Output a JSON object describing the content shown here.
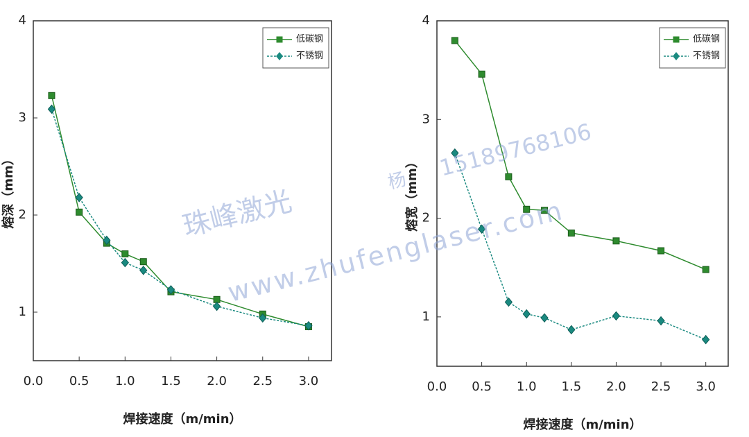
{
  "chart_data": [
    {
      "type": "line",
      "ylabel": "熔深（mm）",
      "xlabel": "焊接速度（m/min）",
      "x": [
        0.2,
        0.5,
        0.8,
        1.0,
        1.2,
        1.5,
        2.0,
        2.5,
        3.0
      ],
      "series": [
        {
          "name": "低碳钢",
          "color": "#2e8b2e",
          "values": [
            3.23,
            2.03,
            1.71,
            1.6,
            1.52,
            1.21,
            1.13,
            0.98,
            0.85
          ]
        },
        {
          "name": "不锈钢",
          "color": "#1a8a80",
          "values": [
            3.09,
            2.18,
            1.74,
            1.51,
            1.43,
            1.23,
            1.06,
            0.94,
            0.86
          ]
        }
      ],
      "xlim": [
        0,
        3.25
      ],
      "ylim": [
        0.5,
        4
      ],
      "xticks": [
        {
          "value": 0,
          "label": "0.0"
        },
        0.5,
        {
          "value": 1,
          "label": "1.0"
        },
        1.5,
        {
          "value": 2,
          "label": "2.0"
        },
        2.5,
        {
          "value": 3,
          "label": "3.0"
        }
      ],
      "yticks": [
        1,
        2,
        3,
        4
      ],
      "legend": "upper right"
    },
    {
      "type": "line",
      "ylabel": "熔宽（mm）",
      "xlabel": "焊接速度（m/min）",
      "x": [
        0.2,
        0.5,
        0.8,
        1.0,
        1.2,
        1.5,
        2.0,
        2.5,
        3.0
      ],
      "series": [
        {
          "name": "低碳钢",
          "color": "#2e8b2e",
          "values": [
            3.8,
            3.46,
            2.42,
            2.09,
            2.08,
            1.85,
            1.77,
            1.67,
            1.48
          ]
        },
        {
          "name": "不锈钢",
          "color": "#1a8a80",
          "values": [
            2.66,
            1.89,
            1.15,
            1.03,
            0.99,
            0.87,
            1.01,
            0.96,
            0.77
          ]
        }
      ],
      "xlim": [
        0,
        3.25
      ],
      "ylim": [
        0.5,
        4
      ],
      "xticks": [
        {
          "value": 0,
          "label": "0.0"
        },
        0.5,
        {
          "value": 1,
          "label": "1.0"
        },
        1.5,
        {
          "value": 2,
          "label": "2.0"
        },
        2.5,
        {
          "value": 3,
          "label": "3.0"
        }
      ],
      "yticks": [
        1,
        2,
        3,
        4
      ],
      "legend": "upper right"
    }
  ],
  "watermark": [
    "珠峰激光",
    "杨",
    "15189768106",
    "www.zhufenglaser.com"
  ]
}
